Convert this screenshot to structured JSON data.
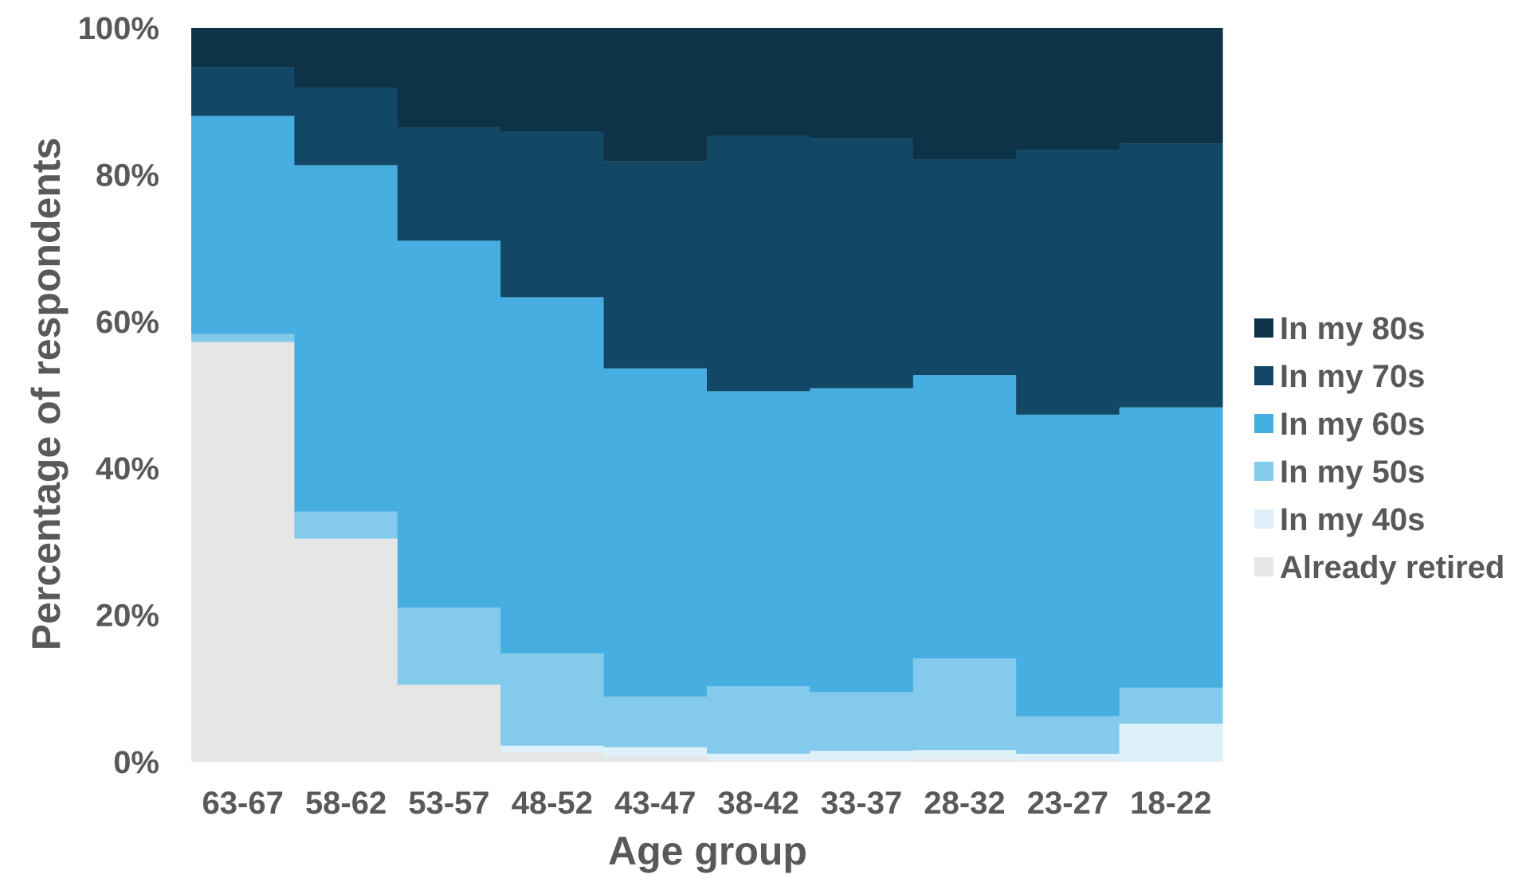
{
  "chart_data": {
    "type": "bar",
    "stacked": true,
    "bar_gap": 0,
    "categories": [
      "63-67",
      "58-62",
      "53-57",
      "48-52",
      "43-47",
      "38-42",
      "33-37",
      "28-32",
      "23-27",
      "18-22"
    ],
    "series": [
      {
        "name": "Already retired",
        "color": "#e6e6e6",
        "values": [
          57.2,
          30.4,
          10.5,
          1.3,
          0.8,
          0.2,
          0.2,
          0.4,
          0.2,
          0.0
        ]
      },
      {
        "name": "In my 40s",
        "color": "#def1f9",
        "values": [
          0.0,
          0.0,
          0.0,
          0.9,
          1.2,
          0.9,
          1.3,
          1.2,
          0.9,
          5.2
        ]
      },
      {
        "name": "In my 50s",
        "color": "#83caec",
        "values": [
          1.1,
          3.7,
          10.5,
          12.6,
          6.9,
          9.2,
          8.0,
          12.5,
          5.1,
          4.9
        ]
      },
      {
        "name": "In my 60s",
        "color": "#46aee0",
        "values": [
          29.7,
          47.2,
          50.0,
          48.5,
          44.7,
          40.2,
          41.4,
          38.6,
          41.1,
          38.2
        ]
      },
      {
        "name": "In my 70s",
        "color": "#124865",
        "values": [
          6.6,
          10.5,
          15.4,
          22.6,
          28.2,
          34.8,
          34.0,
          29.4,
          36.1,
          35.9
        ]
      },
      {
        "name": "In my 80s",
        "color": "#0e3247",
        "values": [
          5.4,
          8.2,
          13.6,
          14.1,
          18.2,
          14.7,
          15.1,
          17.9,
          16.6,
          15.8
        ]
      }
    ],
    "xlabel": "Age group",
    "ylabel": "Percentage of respondents",
    "ylim": [
      0,
      100
    ],
    "yticks": [
      "0%",
      "20%",
      "40%",
      "60%",
      "80%",
      "100%"
    ],
    "legend_position": "right",
    "legend_order": [
      "In my 80s",
      "In my 70s",
      "In my 60s",
      "In my 50s",
      "In my 40s",
      "Already retired"
    ],
    "grid": false
  }
}
